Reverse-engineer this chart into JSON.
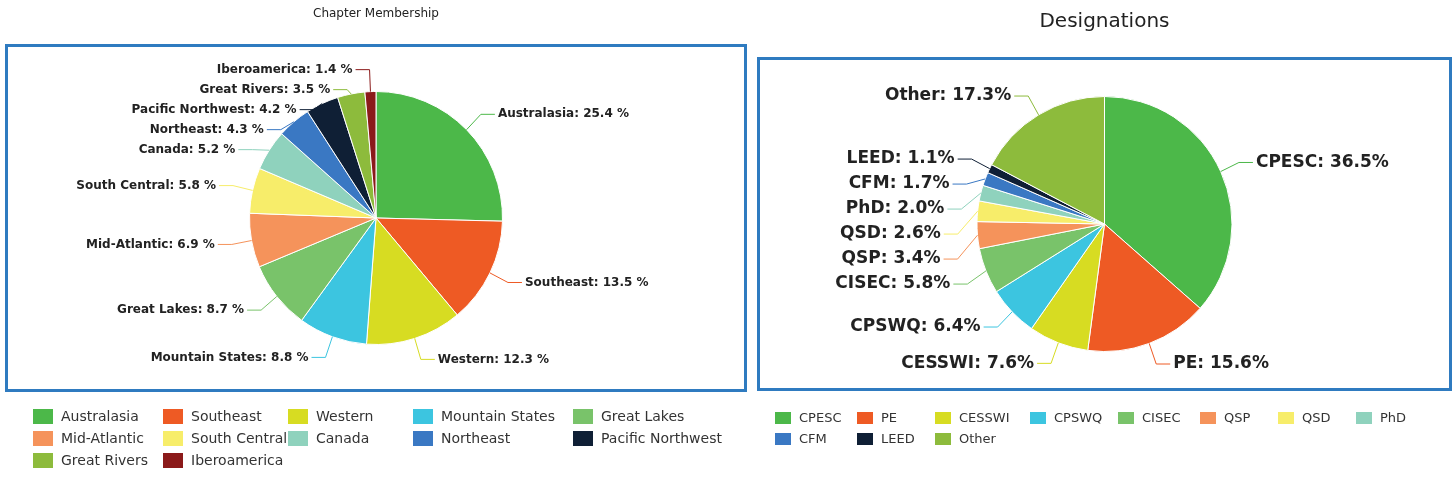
{
  "chart_data": [
    {
      "type": "pie",
      "title": "Chapter Membership",
      "categories": [
        "Australasia",
        "Southeast",
        "Western",
        "Mountain States",
        "Great Lakes",
        "Mid-Atlantic",
        "South Central",
        "Canada",
        "Northeast",
        "Pacific Northwest",
        "Great Rivers",
        "Iberoamerica"
      ],
      "values": [
        25.4,
        13.5,
        12.3,
        8.8,
        8.7,
        6.9,
        5.8,
        5.2,
        4.3,
        4.2,
        3.5,
        1.4
      ],
      "value_labels": [
        "Australasia: 25.4 %",
        "Southeast: 13.5 %",
        "Western: 12.3 %",
        "Mountain States: 8.8 %",
        "Great Lakes: 8.7 %",
        "Mid-Atlantic: 6.9 %",
        "South Central: 5.8 %",
        "Canada: 5.2 %",
        "Northeast: 4.3 %",
        "Pacific Northwest: 4.2 %",
        "Great Rivers: 3.5 %",
        "Iberoamerica: 1.4 %"
      ],
      "colors": [
        "#4cb849",
        "#ee5a24",
        "#d7dc22",
        "#3cc5e0",
        "#79c36a",
        "#f5935b",
        "#f7ed6a",
        "#8fd2bd",
        "#3a78c3",
        "#0f1f35",
        "#8dbb3c",
        "#8b1a1a"
      ],
      "legend": "bottom"
    },
    {
      "type": "pie",
      "title": "Designations",
      "categories": [
        "CPESC",
        "PE",
        "CESSWI",
        "CPSWQ",
        "CISEC",
        "QSP",
        "QSD",
        "PhD",
        "CFM",
        "LEED",
        "Other"
      ],
      "values": [
        36.5,
        15.6,
        7.6,
        6.4,
        5.8,
        3.4,
        2.6,
        2.0,
        1.7,
        1.1,
        17.3
      ],
      "value_labels": [
        "CPESC: 36.5%",
        "PE: 15.6%",
        "CESSWI: 7.6%",
        "CPSWQ: 6.4%",
        "CISEC: 5.8%",
        "QSP: 3.4%",
        "QSD: 2.6%",
        "PhD: 2.0%",
        "CFM: 1.7%",
        "LEED: 1.1%",
        "Other: 17.3%"
      ],
      "colors": [
        "#4cb849",
        "#ee5a24",
        "#d7dc22",
        "#3cc5e0",
        "#79c36a",
        "#f5935b",
        "#f7ed6a",
        "#8fd2bd",
        "#3a78c3",
        "#0f1f35",
        "#8dbb3c"
      ],
      "legend": "bottom"
    }
  ]
}
